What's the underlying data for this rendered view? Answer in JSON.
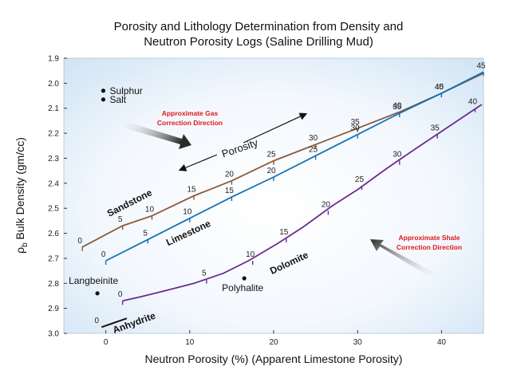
{
  "chart_data": {
    "type": "line",
    "title_lines": [
      "Porosity and Lithology Determination from Density and",
      "Neutron Porosity Logs (Saline Drilling Mud)"
    ],
    "xlabel": "Neutron Porosity (%) (Apparent Limestone Porosity)",
    "ylabel_base": "ρ",
    "ylabel_sub": "b",
    "ylabel_rest": " Bulk Density (gm/cc)",
    "xlim": [
      -5,
      45
    ],
    "ylim": [
      1.9,
      3.0
    ],
    "y_inverted": true,
    "grid": false,
    "x_ticks": [
      {
        "value": 0,
        "label": "0"
      },
      {
        "value": 10,
        "label": "10"
      },
      {
        "value": 20,
        "label": "20"
      },
      {
        "value": 30,
        "label": "30"
      },
      {
        "value": 40,
        "label": "40"
      }
    ],
    "y_ticks": [
      {
        "value": 1.9,
        "label": "1.9"
      },
      {
        "value": 2.0,
        "label": "2.0"
      },
      {
        "value": 2.1,
        "label": "2.1"
      },
      {
        "value": 2.2,
        "label": "2.2"
      },
      {
        "value": 2.3,
        "label": "2.3"
      },
      {
        "value": 2.4,
        "label": "2.4"
      },
      {
        "value": 2.5,
        "label": "2.5"
      },
      {
        "value": 2.6,
        "label": "2.6"
      },
      {
        "value": 2.7,
        "label": "2.7"
      },
      {
        "value": 2.8,
        "label": "2.8"
      },
      {
        "value": 2.9,
        "label": "2.9"
      },
      {
        "value": 3.0,
        "label": "3.0"
      }
    ],
    "series": [
      {
        "name": "Sandstone",
        "color": "#8b5a3c",
        "points": [
          [
            -2.8,
            2.655
          ],
          [
            2.0,
            2.57
          ],
          [
            5.5,
            2.53
          ],
          [
            10.5,
            2.45
          ],
          [
            15.0,
            2.39
          ],
          [
            20.0,
            2.31
          ],
          [
            25.0,
            2.245
          ],
          [
            30.0,
            2.18
          ],
          [
            35.0,
            2.115
          ],
          [
            40.0,
            2.04
          ],
          [
            45.0,
            1.96
          ]
        ],
        "porosity_labels": [
          {
            "label": "0",
            "x": -2.8,
            "y": 2.655
          },
          {
            "label": "5",
            "x": 2.0,
            "y": 2.57
          },
          {
            "label": "10",
            "x": 5.5,
            "y": 2.53
          },
          {
            "label": "15",
            "x": 10.5,
            "y": 2.45
          },
          {
            "label": "20",
            "x": 15.0,
            "y": 2.39
          },
          {
            "label": "25",
            "x": 20.0,
            "y": 2.31
          },
          {
            "label": "30",
            "x": 25.0,
            "y": 2.245
          },
          {
            "label": "35",
            "x": 30.0,
            "y": 2.18
          },
          {
            "label": "40",
            "x": 35.0,
            "y": 2.115
          },
          {
            "label": "45",
            "x": 40.0,
            "y": 2.04
          }
        ]
      },
      {
        "name": "Limestone",
        "color": "#1273b5",
        "points": [
          [
            0,
            2.71
          ],
          [
            5,
            2.625
          ],
          [
            10,
            2.54
          ],
          [
            15,
            2.455
          ],
          [
            20,
            2.375
          ],
          [
            25,
            2.29
          ],
          [
            30,
            2.205
          ],
          [
            35,
            2.12
          ],
          [
            40,
            2.04
          ],
          [
            45,
            1.955
          ]
        ],
        "porosity_labels": [
          {
            "label": "0",
            "x": 0,
            "y": 2.71
          },
          {
            "label": "5",
            "x": 5,
            "y": 2.625
          },
          {
            "label": "10",
            "x": 10,
            "y": 2.54
          },
          {
            "label": "15",
            "x": 15,
            "y": 2.455
          },
          {
            "label": "20",
            "x": 20,
            "y": 2.375
          },
          {
            "label": "25",
            "x": 25,
            "y": 2.29
          },
          {
            "label": "30",
            "x": 30,
            "y": 2.205
          },
          {
            "label": "35",
            "x": 35,
            "y": 2.12
          },
          {
            "label": "40",
            "x": 40,
            "y": 2.04
          },
          {
            "label": "45",
            "x": 45,
            "y": 1.955
          }
        ]
      },
      {
        "name": "Dolomite",
        "color": "#6a2c91",
        "points": [
          [
            2.0,
            2.87
          ],
          [
            4.0,
            2.855
          ],
          [
            7.0,
            2.83
          ],
          [
            10.5,
            2.8
          ],
          [
            14.0,
            2.76
          ],
          [
            17.0,
            2.71
          ],
          [
            20.5,
            2.64
          ],
          [
            23.5,
            2.575
          ],
          [
            27.0,
            2.49
          ],
          [
            30.0,
            2.425
          ],
          [
            33.5,
            2.34
          ],
          [
            37.0,
            2.26
          ],
          [
            41.0,
            2.17
          ],
          [
            44.8,
            2.085
          ]
        ],
        "porosity_labels": [
          {
            "label": "0",
            "x": 2.0,
            "y": 2.87
          },
          {
            "label": "5",
            "x": 12.0,
            "y": 2.785
          },
          {
            "label": "10",
            "x": 17.5,
            "y": 2.71
          },
          {
            "label": "15",
            "x": 21.5,
            "y": 2.62
          },
          {
            "label": "20",
            "x": 26.5,
            "y": 2.51
          },
          {
            "label": "25",
            "x": 30.5,
            "y": 2.41
          },
          {
            "label": "30",
            "x": 35.0,
            "y": 2.31
          },
          {
            "label": "35",
            "x": 39.5,
            "y": 2.205
          },
          {
            "label": "40",
            "x": 44.0,
            "y": 2.1
          }
        ]
      }
    ],
    "anhydrite": {
      "name": "Anhydrite",
      "label_0": "0",
      "points": [
        [
          -0.5,
          2.975
        ],
        [
          2.5,
          2.94
        ]
      ]
    },
    "minerals": [
      {
        "name": "Sulphur",
        "x": -0.3,
        "y": 2.03
      },
      {
        "name": "Salt",
        "x": -0.3,
        "y": 2.065
      },
      {
        "name": "Langbeinite",
        "x": -1.0,
        "y": 2.84
      },
      {
        "name": "Polyhalite",
        "x": 16.5,
        "y": 2.78
      }
    ],
    "annotations": {
      "porosity_arrow_label": "Porosity",
      "gas_note": [
        "Approximate Gas",
        "Correction Direction"
      ],
      "shale_note": [
        "Approximate Shale",
        "Correction Direction"
      ]
    },
    "colors": {
      "plot_bg_outer": "#d7e9f7",
      "plot_bg_inner": "#ffffff",
      "note_red": "#e3161b"
    }
  }
}
